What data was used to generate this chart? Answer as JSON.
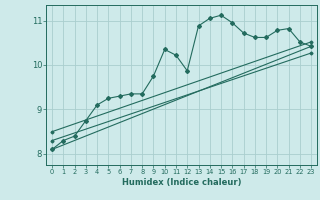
{
  "xlabel": "Humidex (Indice chaleur)",
  "ylabel": "",
  "background_color": "#ceeaea",
  "grid_color": "#aacece",
  "line_color": "#236b5e",
  "xlim": [
    -0.5,
    23.5
  ],
  "ylim": [
    7.75,
    11.35
  ],
  "xticks": [
    0,
    1,
    2,
    3,
    4,
    5,
    6,
    7,
    8,
    9,
    10,
    11,
    12,
    13,
    14,
    15,
    16,
    17,
    18,
    19,
    20,
    21,
    22,
    23
  ],
  "yticks": [
    8,
    9,
    10,
    11
  ],
  "main_x": [
    0,
    1,
    2,
    3,
    4,
    5,
    6,
    7,
    8,
    9,
    10,
    11,
    12,
    13,
    14,
    15,
    16,
    17,
    18,
    19,
    20,
    21,
    22,
    23
  ],
  "main_y": [
    8.1,
    8.3,
    8.4,
    8.75,
    9.1,
    9.25,
    9.3,
    9.35,
    9.35,
    9.75,
    10.35,
    10.22,
    9.87,
    10.88,
    11.05,
    11.12,
    10.95,
    10.72,
    10.62,
    10.62,
    10.78,
    10.82,
    10.52,
    10.42
  ],
  "line1_x": [
    0,
    23
  ],
  "line1_y": [
    8.1,
    10.42
  ],
  "line2_x": [
    0,
    23
  ],
  "line2_y": [
    8.5,
    10.52
  ],
  "line3_x": [
    0,
    23
  ],
  "line3_y": [
    8.3,
    10.27
  ]
}
